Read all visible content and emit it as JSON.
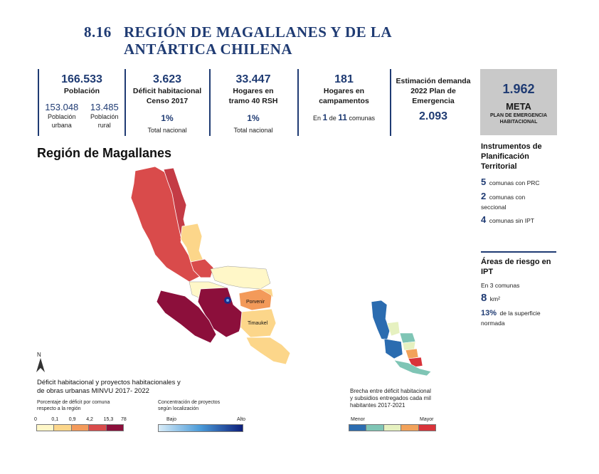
{
  "header": {
    "number": "8.16",
    "title_line1": "REGIÓN DE MAGALLANES Y DE LA",
    "title_line2": "ANTÁRTICA CHILENA"
  },
  "stats": {
    "population": {
      "value": "166.533",
      "label": "Población",
      "urban_value": "153.048",
      "urban_label1": "Población",
      "urban_label2": "urbana",
      "rural_value": "13.485",
      "rural_label1": "Población",
      "rural_label2": "rural"
    },
    "deficit": {
      "value": "3.623",
      "label1": "Déficit habitacional",
      "label2": "Censo 2017",
      "pct": "1%",
      "pct_label": "Total nacional"
    },
    "households": {
      "value": "33.447",
      "label1": "Hogares en",
      "label2": "tramo 40 RSH",
      "pct": "1%",
      "pct_label": "Total  nacional"
    },
    "camps": {
      "value": "181",
      "label1": "Hogares en",
      "label2": "campamentos",
      "note_pre": "En",
      "note_a": "1",
      "note_mid": "de",
      "note_b": "11",
      "note_post": "comunas"
    },
    "demand": {
      "label1": "Estimación demanda",
      "label2": "2022 Plan de",
      "label3": "Emergencia",
      "value": "2.093"
    },
    "meta": {
      "value": "1.962",
      "label": "META",
      "sub1": "PLAN DE EMERGENCIA",
      "sub2": "HABITACIONAL"
    }
  },
  "region_title": "Región de Magallanes",
  "ipt": {
    "title1": "Instrumentos de",
    "title2": "Planificación",
    "title3": "Territorial",
    "items": [
      {
        "n": "5",
        "text": "comunas con PRC"
      },
      {
        "n": "2",
        "text": "comunas con",
        "text2": "seccional"
      },
      {
        "n": "4",
        "text": "comunas sin IPT"
      }
    ]
  },
  "risk": {
    "title1": "Áreas de riesgo en",
    "title2": "IPT",
    "line1": "En 3 comunas",
    "area_value": "8",
    "area_unit": "km²",
    "pct_value": "13%",
    "pct_text": "de la superficie",
    "pct_text2": "normada"
  },
  "map": {
    "north": "N",
    "labels": {
      "porvenir": "Porvenir",
      "timaukel": "Timaukel"
    },
    "caption1": "Déficit habitacional y proyectos habitacionales y",
    "caption2": "de obras urbanas MINVU 2017- 2022",
    "legend_deficit_title1": "Porcentaje de déficit por comuna",
    "legend_deficit_title2": "respecto a la región",
    "legend_deficit_ticks": [
      "0",
      "0,1",
      "0,9",
      "4,2",
      "15,3",
      "78"
    ],
    "legend_deficit_colors": [
      "#fff7c8",
      "#fcd68a",
      "#f39a5a",
      "#d94b4b",
      "#8c0f3b"
    ],
    "legend_proj_title1": "Concentración de proyectos",
    "legend_proj_title2": "según localización",
    "legend_proj_low": "Bajo",
    "legend_proj_high": "Alto"
  },
  "inset": {
    "caption1": "Brecha entre déficit habitacional",
    "caption2": "y subsidios entregados cada mil",
    "caption3": "habitantes 2017-2021",
    "low": "Menor",
    "high": "Mayor",
    "colors": [
      "#2b6cb0",
      "#7fc5b5",
      "#e6f1c0",
      "#f2a25a",
      "#d9333a"
    ]
  }
}
